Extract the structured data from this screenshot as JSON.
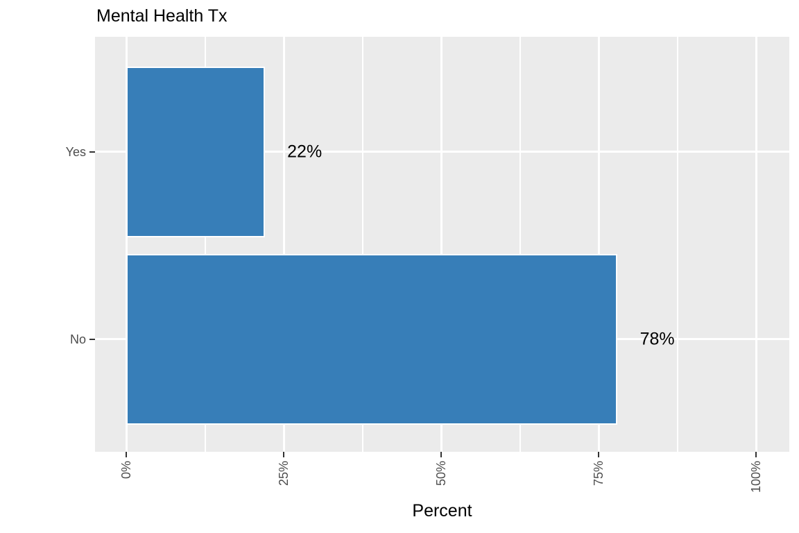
{
  "chart_data": {
    "type": "bar",
    "orientation": "horizontal",
    "title": "Mental Health Tx",
    "categories": [
      "Yes",
      "No"
    ],
    "values": [
      22,
      78
    ],
    "value_labels": [
      "22%",
      "78%"
    ],
    "xlabel": "Percent",
    "ylabel": "",
    "x_ticks": [
      "0%",
      "25%",
      "50%",
      "75%",
      "100%"
    ],
    "x_tick_values": [
      0,
      25,
      50,
      75,
      100
    ],
    "x_minor_tick_values": [
      12.5,
      37.5,
      62.5,
      87.5
    ],
    "xlim": [
      0,
      100
    ],
    "x_tick_rotation_degrees": 90,
    "grid": true,
    "legend": false,
    "colors": {
      "bar_fill": "#377EB8",
      "bar_border": "#FFFFFF",
      "panel_bg": "#EBEBEB",
      "gridline": "#FFFFFF",
      "axis_text": "#4D4D4D",
      "tick_mark": "#333333",
      "label_text": "#000000"
    }
  }
}
